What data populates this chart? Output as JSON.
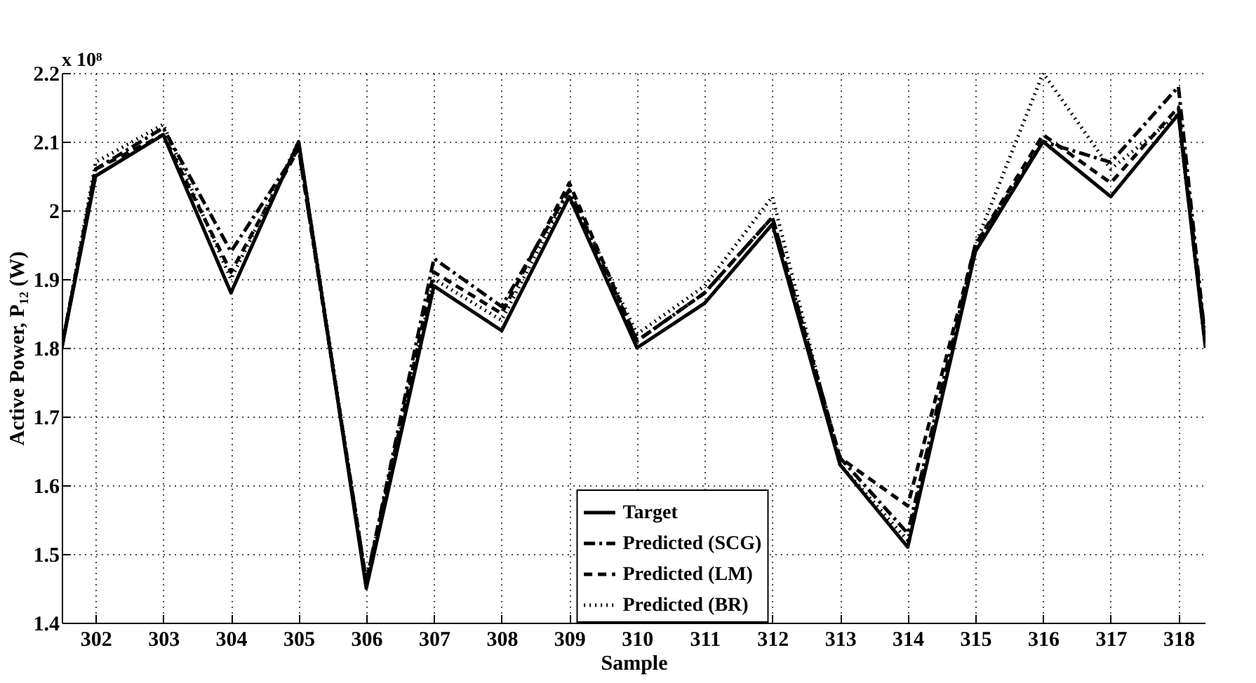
{
  "chart_data": {
    "type": "line",
    "xlabel": "Sample",
    "ylabel": "Active Power, P₁₂ (W)",
    "annotations": [
      "x 10⁸"
    ],
    "x": [
      301.5,
      302,
      303,
      304,
      305,
      306,
      307,
      308,
      309,
      310,
      311,
      312,
      313,
      314,
      315,
      316,
      317,
      318,
      318.4
    ],
    "series": [
      {
        "name": "Target",
        "color": "#000000",
        "line_style": "solid",
        "values": [
          1.8,
          2.05,
          2.11,
          1.88,
          2.1,
          1.45,
          1.89,
          1.825,
          2.02,
          1.8,
          1.865,
          1.98,
          1.63,
          1.51,
          1.94,
          2.1,
          2.02,
          2.14,
          1.8
        ]
      },
      {
        "name": "Predicted (SCG)",
        "color": "#000000",
        "line_style": "dashdot",
        "values": [
          1.8,
          2.06,
          2.12,
          1.94,
          2.09,
          1.46,
          1.93,
          1.86,
          2.03,
          1.81,
          1.88,
          1.99,
          1.64,
          1.53,
          1.95,
          2.1,
          2.07,
          2.18,
          1.81
        ]
      },
      {
        "name": "Predicted (LM)",
        "color": "#000000",
        "line_style": "dashed",
        "values": [
          1.8,
          2.06,
          2.11,
          1.91,
          2.09,
          1.46,
          1.91,
          1.85,
          2.04,
          1.81,
          1.88,
          1.99,
          1.64,
          1.57,
          1.95,
          2.11,
          2.04,
          2.15,
          1.81
        ]
      },
      {
        "name": "Predicted (BR)",
        "color": "#000000",
        "line_style": "dotted",
        "values": [
          1.8,
          2.07,
          2.125,
          1.9,
          2.1,
          1.46,
          1.9,
          1.84,
          2.03,
          1.82,
          1.89,
          2.02,
          1.63,
          1.52,
          1.95,
          2.2,
          2.06,
          2.14,
          1.8
        ]
      }
    ],
    "xlim": [
      301.5,
      318.4
    ],
    "xticks": [
      302,
      303,
      304,
      305,
      306,
      307,
      308,
      309,
      310,
      311,
      312,
      313,
      314,
      315,
      316,
      317,
      318
    ],
    "ylim": [
      1.4,
      2.2
    ],
    "yticks": [
      1.4,
      1.5,
      1.6,
      1.7,
      1.8,
      1.9,
      2.0,
      2.1,
      2.2
    ],
    "grid": true,
    "legend": "bottom"
  }
}
